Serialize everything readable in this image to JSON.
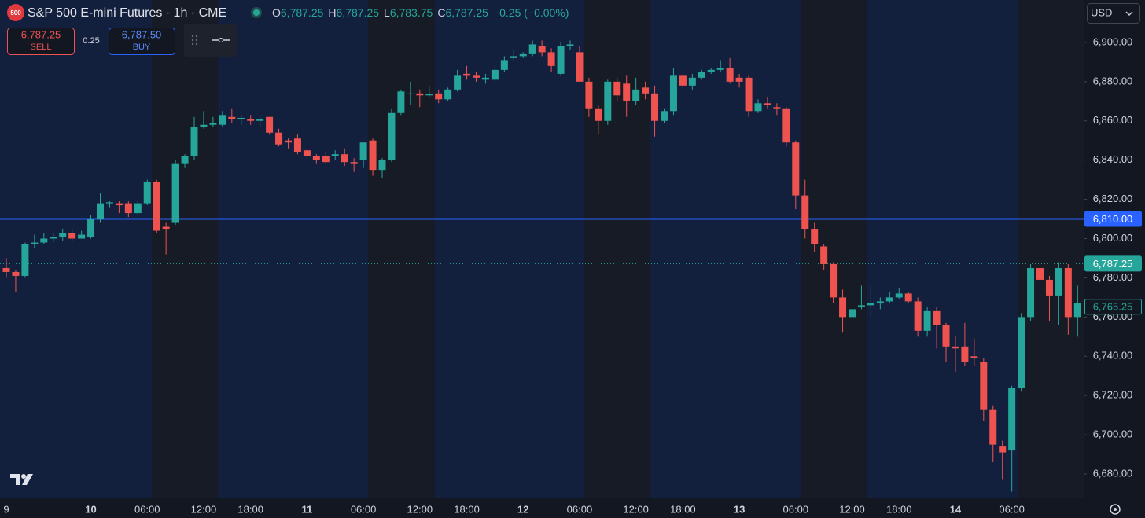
{
  "header": {
    "logo": "500",
    "title": "S&P 500 E-mini Futures · 1h · CME",
    "ohlc": [
      {
        "label": "O",
        "value": "6,787.25"
      },
      {
        "label": "H",
        "value": "6,787.25"
      },
      {
        "label": "L",
        "value": "6,783.75"
      },
      {
        "label": "C",
        "value": "6,787.25"
      }
    ],
    "change": "−0.25 (−0.00%)"
  },
  "trade_panel": {
    "sell_price": "6,787.25",
    "sell_label": "SELL",
    "spread": "0.25",
    "buy_price": "6,787.50",
    "buy_label": "BUY"
  },
  "currency": "USD",
  "chart_data": {
    "type": "candlestick",
    "up_color": "#26a69a",
    "down_color": "#ef5350",
    "grid": false,
    "categories": [
      "9",
      null,
      null,
      null,
      null,
      null,
      null,
      null,
      null,
      "10",
      null,
      null,
      null,
      null,
      null,
      "06:00",
      null,
      null,
      null,
      null,
      null,
      "12:00",
      null,
      null,
      null,
      null,
      "18:00",
      null,
      null,
      null,
      null,
      null,
      "11",
      null,
      null,
      null,
      null,
      null,
      "06:00",
      null,
      null,
      null,
      null,
      null,
      "12:00",
      null,
      null,
      null,
      null,
      "18:00",
      null,
      null,
      null,
      null,
      null,
      "12",
      null,
      null,
      null,
      null,
      null,
      "06:00",
      null,
      null,
      null,
      null,
      null,
      "12:00",
      null,
      null,
      null,
      null,
      "18:00",
      null,
      null,
      null,
      null,
      null,
      "13",
      null,
      null,
      null,
      null,
      null,
      "06:00",
      null,
      null,
      null,
      null,
      null,
      "12:00",
      null,
      null,
      null,
      null,
      "18:00",
      null,
      null,
      null,
      null,
      null,
      "14",
      null,
      null,
      null,
      null,
      null,
      "06:00",
      null,
      null,
      null,
      null,
      null,
      null,
      null
    ],
    "open": [
      6785,
      6783,
      6781,
      6797,
      6798,
      6800,
      6801,
      6803,
      6800,
      6801,
      6810,
      6818,
      6818,
      6818,
      6813,
      6818,
      6829,
      6806,
      6808,
      6838,
      6842,
      6857,
      6858,
      6858,
      6862,
      6861,
      6861,
      6860,
      6862,
      6854,
      6850,
      6851,
      6845,
      6842,
      6842,
      6842,
      6843,
      6839,
      6840,
      6850,
      6835,
      6840,
      6864,
      6874,
      6874,
      6873,
      6874,
      6871,
      6876,
      6884,
      6883,
      6881,
      6881,
      6886,
      6892,
      6893,
      6894,
      6898,
      6895,
      6884,
      6898,
      6895,
      6880,
      6866,
      6860,
      6880,
      6879,
      6870,
      6877,
      6874,
      6860,
      6865,
      6883,
      6878,
      6882,
      6885,
      6886,
      6887,
      6882,
      6882,
      6865,
      6869,
      6867,
      6866,
      6849,
      6822,
      6805,
      6796,
      6787,
      6770,
      6760,
      6765,
      6766,
      6767,
      6768,
      6770,
      6772,
      6768,
      6753,
      6763,
      6756,
      6745,
      6745,
      6740,
      6737,
      6713,
      6694,
      6692,
      6724,
      6760,
      6785,
      6779,
      6771,
      6785,
      6760
    ],
    "high": [
      6790,
      6784,
      6798,
      6802,
      6803,
      6803,
      6805,
      6805,
      6804,
      6812,
      6823,
      6819,
      6819,
      6819,
      6819,
      6830,
      6830,
      6808,
      6840,
      6843,
      6862,
      6865,
      6862,
      6865,
      6866,
      6863,
      6863,
      6862,
      6862,
      6856,
      6851,
      6853,
      6846,
      6843,
      6844,
      6845,
      6846,
      6841,
      6849,
      6851,
      6841,
      6866,
      6876,
      6880,
      6876,
      6878,
      6876,
      6877,
      6886,
      6888,
      6885,
      6884,
      6888,
      6893,
      6896,
      6895,
      6901,
      6901,
      6897,
      6900,
      6901,
      6898,
      6882,
      6868,
      6881,
      6882,
      6883,
      6882,
      6880,
      6878,
      6866,
      6887,
      6884,
      6884,
      6886,
      6887,
      6891,
      6892,
      6884,
      6883,
      6871,
      6872,
      6869,
      6867,
      6850,
      6830,
      6808,
      6797,
      6788,
      6774,
      6775,
      6776,
      6776,
      6770,
      6773,
      6775,
      6773,
      6770,
      6765,
      6765,
      6757,
      6750,
      6757,
      6749,
      6739,
      6715,
      6697,
      6725,
      6762,
      6787,
      6792,
      6781,
      6788,
      6787,
      6776
    ],
    "low": [
      6780,
      6773,
      6780,
      6795,
      6797,
      6798,
      6799,
      6799,
      6800,
      6800,
      6808,
      6816,
      6813,
      6811,
      6812,
      6817,
      6803,
      6792,
      6807,
      6836,
      6840,
      6856,
      6857,
      6857,
      6859,
      6858,
      6858,
      6857,
      6853,
      6847,
      6846,
      6843,
      6841,
      6838,
      6838,
      6840,
      6837,
      6834,
      6836,
      6832,
      6831,
      6839,
      6863,
      6868,
      6867,
      6872,
      6869,
      6870,
      6875,
      6881,
      6880,
      6879,
      6880,
      6885,
      6891,
      6892,
      6893,
      6893,
      6885,
      6883,
      6896,
      6880,
      6862,
      6853,
      6858,
      6870,
      6862,
      6868,
      6871,
      6852,
      6859,
      6863,
      6876,
      6876,
      6881,
      6884,
      6885,
      6879,
      6877,
      6862,
      6864,
      6866,
      6863,
      6847,
      6815,
      6800,
      6793,
      6784,
      6767,
      6752,
      6752,
      6764,
      6760,
      6764,
      6767,
      6769,
      6767,
      6750,
      6750,
      6744,
      6737,
      6732,
      6735,
      6735,
      6707,
      6686,
      6677,
      6671,
      6722,
      6758,
      6763,
      6758,
      6756,
      6751,
      6750
    ],
    "close": [
      6783,
      6781,
      6797,
      6798,
      6800,
      6801,
      6803,
      6800,
      6802,
      6810,
      6818,
      6818.5,
      6817,
      6813,
      6818,
      6829,
      6804,
      6805,
      6838,
      6842,
      6857,
      6858,
      6859,
      6863,
      6861,
      6861.5,
      6860,
      6861,
      6854,
      6848,
      6849,
      6844,
      6842,
      6840,
      6839,
      6843,
      6839,
      6838,
      6849,
      6835,
      6840,
      6864,
      6875,
      6874,
      6873,
      6873.5,
      6871,
      6876,
      6883,
      6883,
      6882,
      6882,
      6886,
      6891,
      6893,
      6894,
      6899,
      6895,
      6888,
      6898,
      6899,
      6880,
      6866,
      6860,
      6880,
      6873,
      6870,
      6876,
      6874,
      6860,
      6865,
      6883,
      6878,
      6882,
      6885,
      6886,
      6887,
      6880,
      6880,
      6865,
      6869,
      6868,
      6866,
      6849,
      6822,
      6805,
      6797,
      6787,
      6770,
      6760,
      6764,
      6766,
      6767,
      6768,
      6770,
      6772,
      6768,
      6753,
      6763,
      6756,
      6745,
      6744,
      6737,
      6739,
      6713,
      6695,
      6691,
      6724,
      6760,
      6785,
      6779,
      6771,
      6785,
      6760,
      6767
    ],
    "ylim": [
      6668,
      6921.6
    ],
    "yticks": [
      {
        "value": 6680,
        "label": "6,680.00"
      },
      {
        "value": 6700,
        "label": "6,700.00"
      },
      {
        "value": 6720,
        "label": "6,720.00"
      },
      {
        "value": 6740,
        "label": "6,740.00"
      },
      {
        "value": 6760,
        "label": "6,760.00"
      },
      {
        "value": 6780,
        "label": "6,780.00"
      },
      {
        "value": 6800,
        "label": "6,800.00"
      },
      {
        "value": 6820,
        "label": "6,820.00"
      },
      {
        "value": 6840,
        "label": "6,840.00"
      },
      {
        "value": 6860,
        "label": "6,860.00"
      },
      {
        "value": 6880,
        "label": "6,880.00"
      },
      {
        "value": 6900,
        "label": "6,900.00"
      }
    ],
    "price_lines": [
      {
        "value": 6810,
        "label": "6,810.00",
        "color": "#2962ff",
        "style": "solid"
      },
      {
        "value": 6787.25,
        "label": "6,787.25",
        "color": "#26a69a",
        "style": "dotted"
      },
      {
        "value": 6765.25,
        "label": "6,765.25",
        "color": "#26a69a",
        "style": "outline"
      }
    ]
  }
}
